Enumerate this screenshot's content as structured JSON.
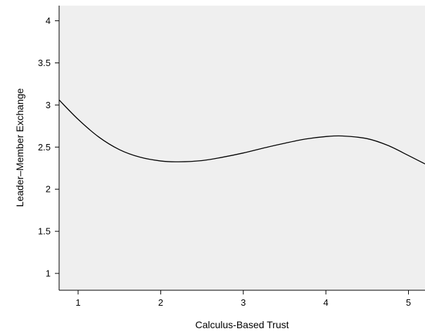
{
  "chart_data": {
    "type": "line",
    "title": "",
    "xlabel": "Calculus-Based Trust",
    "ylabel": "Leader–Member Exchange",
    "xlim": [
      0.77,
      5.2
    ],
    "ylim": [
      0.8,
      4.18
    ],
    "xticks": [
      1,
      2,
      3,
      4,
      5
    ],
    "yticks": [
      1,
      1.5,
      2,
      2.5,
      3,
      3.5,
      4
    ],
    "xtick_labels": [
      "1",
      "2",
      "3",
      "4",
      "5"
    ],
    "ytick_labels": [
      "1",
      "1.5",
      "2",
      "2.5",
      "3",
      "3.5",
      "4"
    ],
    "grid": false,
    "plot_background": "#efefef",
    "line_color": "#000000",
    "series": [
      {
        "x": [
          0.77,
          1.0,
          1.25,
          1.5,
          1.75,
          2.0,
          2.2,
          2.5,
          2.75,
          3.0,
          3.25,
          3.5,
          3.75,
          4.0,
          4.2,
          4.5,
          4.75,
          5.0,
          5.2
        ],
        "values": [
          3.06,
          2.83,
          2.62,
          2.47,
          2.38,
          2.335,
          2.325,
          2.34,
          2.38,
          2.43,
          2.49,
          2.545,
          2.595,
          2.625,
          2.632,
          2.6,
          2.52,
          2.4,
          2.3
        ]
      }
    ]
  }
}
